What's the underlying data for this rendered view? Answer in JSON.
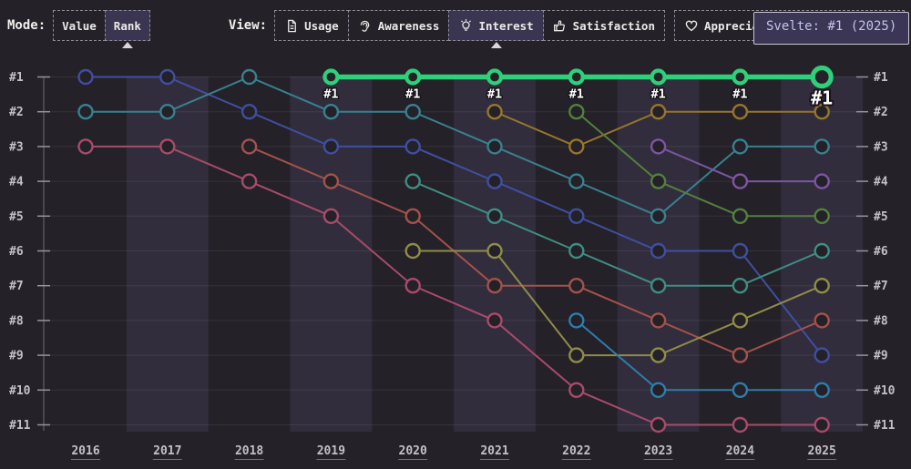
{
  "toolbar": {
    "mode_label": "Mode:",
    "modes": [
      {
        "label": "Value",
        "selected": false
      },
      {
        "label": "Rank",
        "selected": true
      }
    ],
    "view_label": "View:",
    "views": [
      {
        "label": "Usage",
        "icon": "document-icon",
        "selected": false
      },
      {
        "label": "Awareness",
        "icon": "ear-icon",
        "selected": false
      },
      {
        "label": "Interest",
        "icon": "lightbulb-icon",
        "selected": true
      },
      {
        "label": "Satisfaction",
        "icon": "thumbs-up-icon",
        "selected": false
      },
      {
        "label": "Appreciation",
        "icon": "heart-icon",
        "selected": false
      }
    ]
  },
  "tooltip": {
    "text": "Svelte: #1 (2025)"
  },
  "colors": {
    "page_bg": "#242128",
    "band": "#312d3c",
    "grid": "rgba(255,255,255,0.08)",
    "axis": "#56535b",
    "tick": "#96939b",
    "axis_text": "#c3c0c7",
    "highlight": "#2fd07a",
    "point_fill": "#242128",
    "label_text": "#ffffff",
    "label_outline": "#17141a"
  },
  "chart_data": {
    "type": "line",
    "subtype": "bump-rank",
    "title": "",
    "xlabel": "",
    "ylabel": "",
    "x_labels": [
      "2016",
      "2017",
      "2018",
      "2019",
      "2020",
      "2021",
      "2022",
      "2023",
      "2024",
      "2025"
    ],
    "y_labels": [
      "#1",
      "#2",
      "#3",
      "#4",
      "#5",
      "#6",
      "#7",
      "#8",
      "#9",
      "#10",
      "#11"
    ],
    "banded_columns": [
      1,
      3,
      5,
      7,
      9
    ],
    "legend": "none",
    "grid": true,
    "point_label": "#1",
    "series": [
      {
        "name": "indigo",
        "color": "#3f4fa0",
        "highlight": false,
        "ranks": [
          1,
          1,
          2,
          3,
          3,
          4,
          5,
          6,
          6,
          9
        ]
      },
      {
        "name": "teal",
        "color": "#39808f",
        "highlight": false,
        "ranks": [
          2,
          2,
          1,
          2,
          2,
          3,
          4,
          5,
          3,
          3
        ]
      },
      {
        "name": "rose",
        "color": "#a84b69",
        "highlight": false,
        "ranks": [
          3,
          3,
          4,
          5,
          7,
          8,
          10,
          11,
          11,
          11
        ]
      },
      {
        "name": "brick",
        "color": "#a3524b",
        "highlight": false,
        "ranks": [
          null,
          null,
          3,
          4,
          5,
          7,
          7,
          8,
          9,
          8
        ]
      },
      {
        "name": "teal-green",
        "color": "#3f8d84",
        "highlight": false,
        "ranks": [
          null,
          null,
          null,
          null,
          4,
          5,
          6,
          7,
          7,
          6
        ]
      },
      {
        "name": "olive",
        "color": "#8f8c49",
        "highlight": false,
        "ranks": [
          null,
          null,
          null,
          null,
          6,
          6,
          9,
          9,
          8,
          7
        ]
      },
      {
        "name": "goldenrod",
        "color": "#96752e",
        "highlight": false,
        "ranks": [
          null,
          null,
          null,
          null,
          null,
          2,
          3,
          2,
          2,
          2
        ]
      },
      {
        "name": "green",
        "color": "#53803d",
        "highlight": false,
        "ranks": [
          null,
          null,
          null,
          null,
          null,
          null,
          2,
          4,
          5,
          5
        ]
      },
      {
        "name": "azure",
        "color": "#2f7cab",
        "highlight": false,
        "ranks": [
          null,
          null,
          null,
          null,
          null,
          null,
          8,
          10,
          10,
          10
        ]
      },
      {
        "name": "violet",
        "color": "#7d55a2",
        "highlight": false,
        "ranks": [
          null,
          null,
          null,
          null,
          null,
          null,
          null,
          3,
          4,
          4
        ]
      },
      {
        "name": "Svelte",
        "color": "#2fd07a",
        "highlight": true,
        "ranks": [
          null,
          null,
          null,
          1,
          1,
          1,
          1,
          1,
          1,
          1
        ]
      }
    ]
  }
}
